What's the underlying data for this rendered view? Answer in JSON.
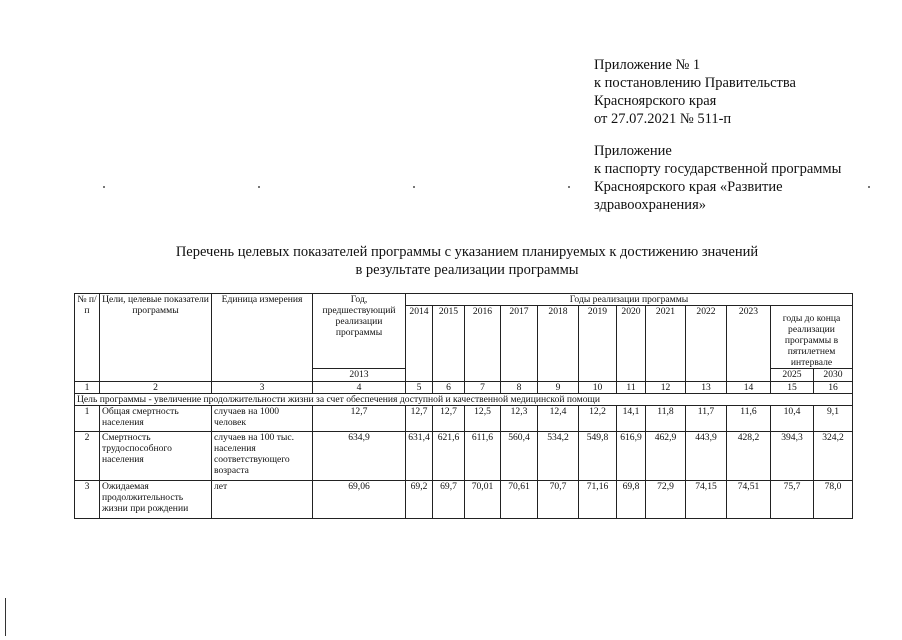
{
  "appendix1": [
    "Приложение № 1",
    "к постановлению Правительства",
    "Красноярского края",
    "от 27.07.2021 № 511-п"
  ],
  "appendix2": [
    "Приложение",
    "к паспорту государственной программы",
    "Красноярского края «Развитие",
    "здравоохранения»"
  ],
  "title": [
    "Перечень целевых показателей программы с указанием планируемых к достижению значений",
    "в результате реализации программы"
  ],
  "table": {
    "h_no": "№ п/п",
    "h_goal": "Цели, целевые показатели программы",
    "h_unit": "Единица измерения",
    "h_prev": "Год, предшествующий реализации программы",
    "h_prev_year": "2013",
    "h_years": "Годы реализации программы",
    "years": [
      "2014",
      "2015",
      "2016",
      "2017",
      "2018",
      "2019",
      "2020",
      "2021",
      "2022",
      "2023"
    ],
    "h_interval": "годы до конца реализации программы в пятилетнем интервале",
    "interval_years": [
      "2025",
      "2030"
    ],
    "col_numbers": [
      "1",
      "2",
      "3",
      "4",
      "5",
      "6",
      "7",
      "8",
      "9",
      "10",
      "11",
      "12",
      "13",
      "14",
      "15",
      "16"
    ],
    "goal_row": "Цель программы - увеличение продолжительности жизни за счет обеспечения доступной и качественной медицинской помощи",
    "rows": [
      {
        "no": "1",
        "name": "Общая смертность населения",
        "unit": "случаев на 1000 человек",
        "values": [
          "12,7",
          "12,7",
          "12,7",
          "12,5",
          "12,3",
          "12,4",
          "12,2",
          "14,1",
          "11,8",
          "11,7",
          "11,6",
          "10,4",
          "9,1"
        ]
      },
      {
        "no": "2",
        "name": "Смертность трудоспособного населения",
        "unit": "случаев на 100 тыс. населения соответствующего возраста",
        "values": [
          "634,9",
          "631,4",
          "621,6",
          "611,6",
          "560,4",
          "534,2",
          "549,8",
          "616,9",
          "462,9",
          "443,9",
          "428,2",
          "394,3",
          "324,2"
        ]
      },
      {
        "no": "3",
        "name": "Ожидаемая продолжительность жизни при рождении",
        "unit": "лет",
        "values": [
          "69,06",
          "69,2",
          "69,7",
          "70,01",
          "70,61",
          "70,7",
          "71,16",
          "69,8",
          "72,9",
          "74,15",
          "74,51",
          "75,7",
          "78,0"
        ]
      }
    ]
  }
}
